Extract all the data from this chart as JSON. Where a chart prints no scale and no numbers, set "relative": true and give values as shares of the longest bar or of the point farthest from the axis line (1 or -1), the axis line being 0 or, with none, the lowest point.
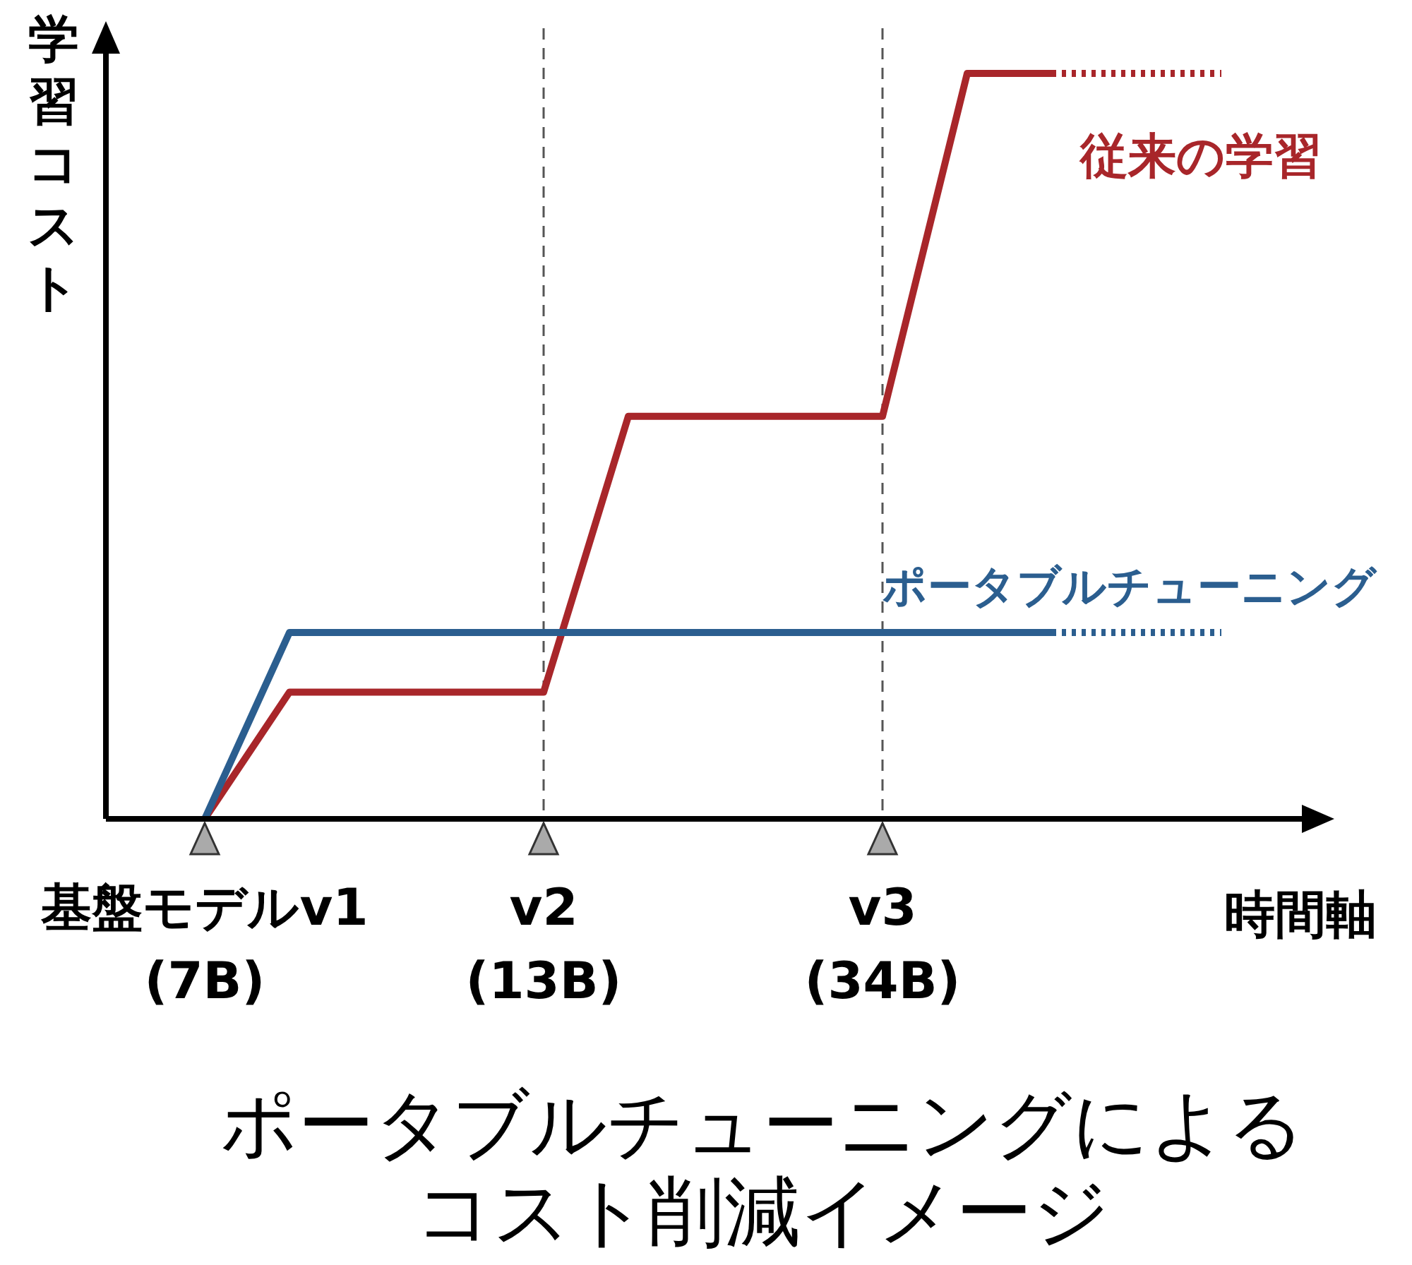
{
  "chart_data": {
    "type": "line",
    "relative": true,
    "title": "ポータブルチューニングによるコスト削減イメージ",
    "xlabel": "時間軸",
    "ylabel": "学習コスト",
    "categories": [
      "基盤モデルv1\n(7B)",
      null,
      null,
      null,
      "v2\n(13B)",
      null,
      null,
      null,
      "v3\n(34B)",
      null,
      null,
      null,
      null
    ],
    "series": [
      {
        "name": "従来の学習",
        "color": "#a8262a",
        "line_style": "solid",
        "values": [
          0,
          0.17,
          0.17,
          0.17,
          0.17,
          0.54,
          0.54,
          0.54,
          0.54,
          1,
          1,
          null,
          null
        ]
      },
      {
        "color": "#a8262a",
        "line_style": "dotted",
        "values": [
          null,
          null,
          null,
          null,
          null,
          null,
          null,
          null,
          null,
          null,
          1,
          1,
          1
        ]
      },
      {
        "name": "ポータブルチューニング",
        "color": "#2b5e8f",
        "line_style": "solid",
        "values": [
          0,
          0.25,
          0.25,
          0.25,
          0.25,
          0.25,
          0.25,
          0.25,
          0.25,
          0.25,
          0.25,
          null,
          null
        ]
      },
      {
        "color": "#2b5e8f",
        "line_style": "dotted",
        "values": [
          null,
          null,
          null,
          null,
          null,
          null,
          null,
          null,
          null,
          null,
          0.25,
          0.25,
          0.25
        ]
      }
    ],
    "ref_lines": [
      {
        "axis": "x",
        "value": "v2\n(13B)",
        "line_style": "dashed",
        "color": "#555555"
      },
      {
        "axis": "x",
        "value": "v3\n(34B)",
        "line_style": "dashed",
        "color": "#555555"
      }
    ]
  }
}
